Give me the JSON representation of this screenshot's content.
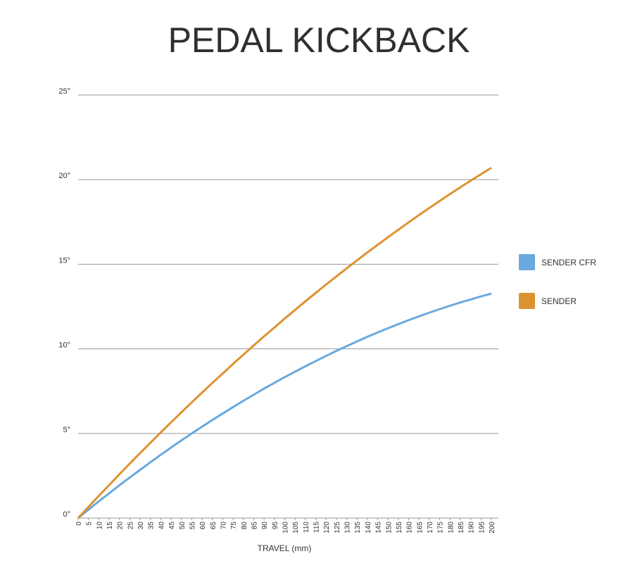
{
  "chart_data": {
    "type": "line",
    "title": "PEDAL KICKBACK",
    "x_label": "TRAVEL (mm)",
    "x": [
      0,
      5,
      10,
      15,
      20,
      25,
      30,
      35,
      40,
      45,
      50,
      55,
      60,
      65,
      70,
      75,
      80,
      85,
      90,
      95,
      100,
      105,
      110,
      115,
      120,
      125,
      130,
      135,
      140,
      145,
      150,
      155,
      160,
      165,
      170,
      175,
      180,
      185,
      190,
      195,
      200
    ],
    "xlim": [
      0,
      200
    ],
    "xticks": [
      0,
      5,
      10,
      15,
      20,
      25,
      30,
      35,
      40,
      45,
      50,
      55,
      60,
      65,
      70,
      75,
      80,
      85,
      90,
      95,
      100,
      105,
      110,
      115,
      120,
      125,
      130,
      135,
      140,
      145,
      150,
      155,
      160,
      165,
      170,
      175,
      180,
      185,
      190,
      195,
      200
    ],
    "ylim": [
      0,
      25
    ],
    "yticks": [
      {
        "value": 0,
        "label": "0°"
      },
      {
        "value": 5,
        "label": "5°"
      },
      {
        "value": 10,
        "label": "10°"
      },
      {
        "value": 15,
        "label": "15°"
      },
      {
        "value": 20,
        "label": "20°"
      },
      {
        "value": 25,
        "label": "25°"
      }
    ],
    "grid": true,
    "legend": "right",
    "series": [
      {
        "name": "SENDER CFR",
        "color": "#6aa9dd",
        "values": [
          0,
          0.5,
          0.99,
          1.46,
          1.94,
          2.4,
          2.85,
          3.3,
          3.74,
          4.17,
          4.59,
          5.0,
          5.4,
          5.8,
          6.18,
          6.56,
          6.93,
          7.29,
          7.65,
          7.99,
          8.33,
          8.65,
          8.97,
          9.28,
          9.58,
          9.88,
          10.16,
          10.44,
          10.71,
          10.97,
          11.22,
          11.46,
          11.7,
          11.92,
          12.14,
          12.35,
          12.55,
          12.74,
          12.92,
          13.1,
          13.26
        ]
      },
      {
        "name": "SENDER",
        "color": "#dd9230",
        "values": [
          0,
          0.66,
          1.31,
          1.95,
          2.59,
          3.22,
          3.84,
          4.45,
          5.06,
          5.66,
          6.25,
          6.84,
          7.42,
          7.99,
          8.55,
          9.11,
          9.66,
          10.2,
          10.74,
          11.26,
          11.79,
          12.3,
          12.81,
          13.31,
          13.8,
          14.28,
          14.76,
          15.23,
          15.7,
          16.15,
          16.6,
          17.04,
          17.48,
          17.91,
          18.33,
          18.74,
          19.15,
          19.55,
          19.94,
          20.32,
          20.7
        ]
      }
    ]
  }
}
